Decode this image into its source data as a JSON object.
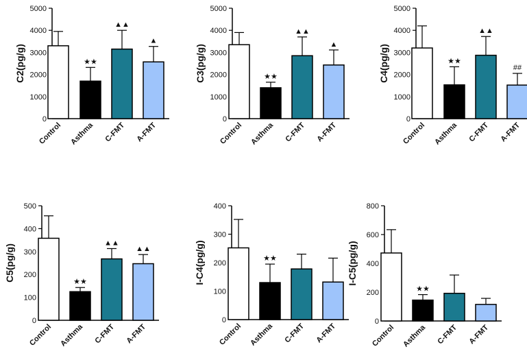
{
  "chart_data": [
    {
      "type": "bar",
      "ylabel": "C2(pg/g)",
      "ylim": [
        0,
        5000
      ],
      "yticks": [
        0,
        1000,
        2000,
        3000,
        4000,
        5000
      ],
      "categories": [
        "Control",
        "Asthma",
        "C-FMT",
        "A-FMT"
      ],
      "values": [
        3300,
        1700,
        3150,
        2570
      ],
      "errors": [
        650,
        620,
        850,
        700
      ],
      "annotations": [
        "",
        "★★",
        "▲▲",
        "▲"
      ],
      "colors": [
        "#ffffff",
        "#000000",
        "#1b7a8f",
        "#9ec4fb"
      ]
    },
    {
      "type": "bar",
      "ylabel": "C3(pg/g)",
      "ylim": [
        0,
        5000
      ],
      "yticks": [
        0,
        1000,
        2000,
        3000,
        4000,
        5000
      ],
      "categories": [
        "Control",
        "Asthma",
        "C-FMT",
        "A-FMT"
      ],
      "values": [
        3350,
        1400,
        2850,
        2430
      ],
      "errors": [
        550,
        250,
        850,
        680
      ],
      "annotations": [
        "",
        "★★",
        "▲▲",
        "▲"
      ],
      "colors": [
        "#ffffff",
        "#000000",
        "#1b7a8f",
        "#9ec4fb"
      ]
    },
    {
      "type": "bar",
      "ylabel": "C4(pg/g)",
      "ylim": [
        0,
        5000
      ],
      "yticks": [
        0,
        1000,
        2000,
        3000,
        4000,
        5000
      ],
      "categories": [
        "Control",
        "Asthma",
        "C-FMT",
        "A-FMT"
      ],
      "values": [
        3200,
        1530,
        2870,
        1520
      ],
      "errors": [
        1000,
        820,
        850,
        530
      ],
      "annotations": [
        "",
        "★★",
        "▲▲",
        "##"
      ],
      "colors": [
        "#ffffff",
        "#000000",
        "#1b7a8f",
        "#9ec4fb"
      ]
    },
    {
      "type": "bar",
      "ylabel": "C5(pg/g)",
      "ylim": [
        0,
        500
      ],
      "yticks": [
        0,
        100,
        200,
        300,
        400,
        500
      ],
      "categories": [
        "Control",
        "Asthma",
        "C-FMT",
        "A-FMT"
      ],
      "values": [
        358,
        125,
        268,
        247
      ],
      "errors": [
        98,
        18,
        45,
        40
      ],
      "annotations": [
        "",
        "★★",
        "▲▲",
        "▲▲"
      ],
      "colors": [
        "#ffffff",
        "#000000",
        "#1b7a8f",
        "#9ec4fb"
      ]
    },
    {
      "type": "bar",
      "ylabel": "I-C4(pg/g)",
      "ylim": [
        0,
        400
      ],
      "yticks": [
        0,
        100,
        200,
        300,
        400
      ],
      "categories": [
        "Control",
        "Asthma",
        "C-FMT",
        "A-FMT"
      ],
      "values": [
        252,
        130,
        178,
        132
      ],
      "errors": [
        100,
        65,
        52,
        84
      ],
      "annotations": [
        "",
        "★★",
        "",
        ""
      ],
      "colors": [
        "#ffffff",
        "#000000",
        "#1b7a8f",
        "#9ec4fb"
      ]
    },
    {
      "type": "bar",
      "ylabel": "I-C5(pg/g)",
      "ylim": [
        0,
        800
      ],
      "yticks": [
        0,
        200,
        400,
        600,
        800
      ],
      "categories": [
        "Control",
        "Asthma",
        "C-FMT",
        "A-FMT"
      ],
      "values": [
        472,
        145,
        192,
        115
      ],
      "errors": [
        162,
        38,
        127,
        42
      ],
      "annotations": [
        "",
        "★★",
        "",
        ""
      ],
      "colors": [
        "#ffffff",
        "#000000",
        "#1b7a8f",
        "#9ec4fb"
      ]
    }
  ]
}
